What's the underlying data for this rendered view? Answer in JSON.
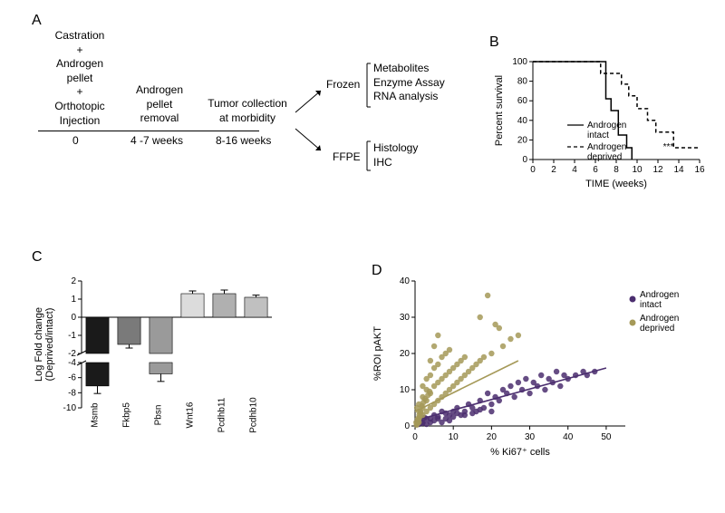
{
  "panelA": {
    "label": "A",
    "col1": [
      "Castration",
      "+",
      "Androgen",
      "pellet",
      "+",
      "Orthotopic",
      "Injection"
    ],
    "col2": [
      "Androgen",
      "pellet",
      "removal"
    ],
    "col3": [
      "Tumor collection",
      "at morbidity"
    ],
    "timeline": [
      "0",
      "4 -7 weeks",
      "8-16 weeks"
    ],
    "branch1_label": "Frozen",
    "branch1_items": [
      "Metabolites",
      "Enzyme Assay",
      "RNA analysis"
    ],
    "branch2_label": "FFPE",
    "branch2_items": [
      "Histology",
      "IHC"
    ]
  },
  "panelB": {
    "label": "B",
    "chart_type": "kaplan-meier",
    "ylabel": "Percent survival",
    "xlabel": "TIME (weeks)",
    "xlim": [
      0,
      16
    ],
    "ylim": [
      0,
      100
    ],
    "xticks": [
      0,
      2,
      4,
      6,
      8,
      10,
      12,
      14,
      16
    ],
    "yticks": [
      0,
      20,
      40,
      60,
      80,
      100
    ],
    "intact": {
      "x": [
        0,
        6,
        6.2,
        7,
        7,
        7.5,
        7.5,
        8.2,
        8.2,
        9,
        9,
        9.5,
        9.5
      ],
      "y": [
        100,
        100,
        100,
        100,
        62,
        62,
        50,
        50,
        25,
        25,
        12,
        12,
        0
      ],
      "style": "solid",
      "color": "#000000",
      "label": "Androgen intact"
    },
    "deprived": {
      "x": [
        0,
        6.5,
        6.5,
        8.5,
        8.5,
        9.2,
        9.2,
        10,
        10,
        11,
        11,
        11.8,
        11.8,
        13.5,
        13.5,
        16
      ],
      "y": [
        100,
        100,
        88,
        88,
        77,
        77,
        65,
        65,
        52,
        52,
        40,
        40,
        28,
        28,
        12,
        12
      ],
      "style": "dashed",
      "color": "#000000",
      "label": "Androgen deprived"
    },
    "significance": "***",
    "sig_x": 13,
    "sig_y": 10
  },
  "panelC": {
    "label": "C",
    "chart_type": "bar",
    "ylabel": "Log Fold change\n(Deprived/intact)",
    "categories": [
      "Msmb",
      "Fkbp5",
      "Pbsn",
      "Wnt16",
      "Pcdhb11",
      "Pcdhb10"
    ],
    "values": [
      -7.1,
      -1.5,
      -5.5,
      1.3,
      1.3,
      1.1
    ],
    "errors": [
      1.0,
      0.2,
      1.0,
      0.15,
      0.2,
      0.12
    ],
    "bar_colors": [
      "#1a1a1a",
      "#7a7a7a",
      "#9a9a9a",
      "#dcdcdc",
      "#b0b0b0",
      "#c0c0c0"
    ],
    "upper_ylim": [
      -2,
      2
    ],
    "upper_yticks": [
      -2,
      -1,
      0,
      1,
      2
    ],
    "lower_ylim": [
      -10,
      -4
    ],
    "lower_yticks": [
      -10,
      -8,
      -6,
      -4
    ],
    "bar_width": 0.72,
    "background": "#ffffff"
  },
  "panelD": {
    "label": "D",
    "chart_type": "scatter",
    "xlabel": "% Ki67⁺ cells",
    "ylabel": "%ROI pAKT",
    "xlim": [
      0,
      55
    ],
    "ylim": [
      0,
      40
    ],
    "xticks": [
      0,
      10,
      20,
      30,
      40,
      50
    ],
    "yticks": [
      0,
      10,
      20,
      30,
      40
    ],
    "series": [
      {
        "name": "Androgen intact",
        "color": "#4b2e6f",
        "marker": "circle",
        "size": 3.2,
        "fit": {
          "x1": 0,
          "y1": 1.5,
          "x2": 50,
          "y2": 16
        },
        "points": [
          [
            2,
            1
          ],
          [
            3,
            2
          ],
          [
            4,
            1
          ],
          [
            5,
            3
          ],
          [
            6,
            2
          ],
          [
            7,
            4
          ],
          [
            8,
            2
          ],
          [
            9,
            3
          ],
          [
            10,
            4
          ],
          [
            11,
            5
          ],
          [
            12,
            3
          ],
          [
            13,
            4
          ],
          [
            14,
            6
          ],
          [
            15,
            5
          ],
          [
            16,
            4
          ],
          [
            17,
            7
          ],
          [
            18,
            5
          ],
          [
            19,
            9
          ],
          [
            20,
            6
          ],
          [
            21,
            8
          ],
          [
            22,
            7
          ],
          [
            23,
            10
          ],
          [
            24,
            9
          ],
          [
            25,
            11
          ],
          [
            26,
            8
          ],
          [
            27,
            12
          ],
          [
            28,
            10
          ],
          [
            29,
            13
          ],
          [
            30,
            9
          ],
          [
            31,
            12
          ],
          [
            32,
            11
          ],
          [
            33,
            14
          ],
          [
            34,
            10
          ],
          [
            35,
            13
          ],
          [
            36,
            12
          ],
          [
            37,
            15
          ],
          [
            38,
            11
          ],
          [
            39,
            14
          ],
          [
            40,
            13
          ],
          [
            42,
            14
          ],
          [
            44,
            15
          ],
          [
            45,
            14
          ],
          [
            47,
            15
          ],
          [
            1,
            0.5
          ],
          [
            2,
            0.8
          ],
          [
            3,
            0.5
          ],
          [
            4,
            2
          ],
          [
            5,
            1.5
          ],
          [
            6,
            2.5
          ],
          [
            7,
            1
          ],
          [
            8,
            3.5
          ],
          [
            9,
            1.5
          ],
          [
            10,
            2.5
          ],
          [
            11,
            3.5
          ],
          [
            13,
            3
          ],
          [
            15,
            3.5
          ],
          [
            17,
            4.5
          ],
          [
            20,
            4
          ],
          [
            1.5,
            1.2
          ],
          [
            2.5,
            2.3
          ]
        ]
      },
      {
        "name": "Androgen deprived",
        "color": "#a59958",
        "marker": "circle",
        "size": 3.2,
        "fit": {
          "x1": 0,
          "y1": 4,
          "x2": 27,
          "y2": 18
        },
        "points": [
          [
            1,
            2
          ],
          [
            1,
            4
          ],
          [
            1,
            6
          ],
          [
            2,
            3
          ],
          [
            2,
            5
          ],
          [
            2,
            8
          ],
          [
            2,
            11
          ],
          [
            3,
            4
          ],
          [
            3,
            7
          ],
          [
            3,
            10
          ],
          [
            3,
            13
          ],
          [
            4,
            5
          ],
          [
            4,
            9
          ],
          [
            4,
            14
          ],
          [
            4,
            18
          ],
          [
            5,
            6
          ],
          [
            5,
            11
          ],
          [
            5,
            16
          ],
          [
            5,
            22
          ],
          [
            6,
            7
          ],
          [
            6,
            12
          ],
          [
            6,
            17
          ],
          [
            6,
            25
          ],
          [
            7,
            8
          ],
          [
            7,
            13
          ],
          [
            7,
            19
          ],
          [
            8,
            9
          ],
          [
            8,
            14
          ],
          [
            8,
            20
          ],
          [
            9,
            10
          ],
          [
            9,
            15
          ],
          [
            9,
            21
          ],
          [
            10,
            11
          ],
          [
            10,
            16
          ],
          [
            11,
            12
          ],
          [
            11,
            17
          ],
          [
            12,
            13
          ],
          [
            12,
            18
          ],
          [
            13,
            14
          ],
          [
            13,
            19
          ],
          [
            14,
            15
          ],
          [
            15,
            16
          ],
          [
            16,
            17
          ],
          [
            17,
            18
          ],
          [
            17,
            30
          ],
          [
            18,
            19
          ],
          [
            19,
            36
          ],
          [
            20,
            20
          ],
          [
            21,
            28
          ],
          [
            22,
            27
          ],
          [
            23,
            22
          ],
          [
            25,
            24
          ],
          [
            27,
            25
          ],
          [
            1,
            1
          ],
          [
            0.5,
            0.5
          ],
          [
            0.8,
            1.5
          ],
          [
            1.2,
            2.5
          ],
          [
            1.5,
            3.5
          ],
          [
            0.5,
            5
          ],
          [
            0.3,
            1
          ],
          [
            0.7,
            2
          ],
          [
            1.1,
            3
          ],
          [
            1.4,
            4
          ],
          [
            0.4,
            0.3
          ],
          [
            0.6,
            0.7
          ],
          [
            1.8,
            5.5
          ],
          [
            2.2,
            6.5
          ],
          [
            2.6,
            7.5
          ],
          [
            3.4,
            8.5
          ],
          [
            3.8,
            9.5
          ]
        ]
      }
    ]
  }
}
